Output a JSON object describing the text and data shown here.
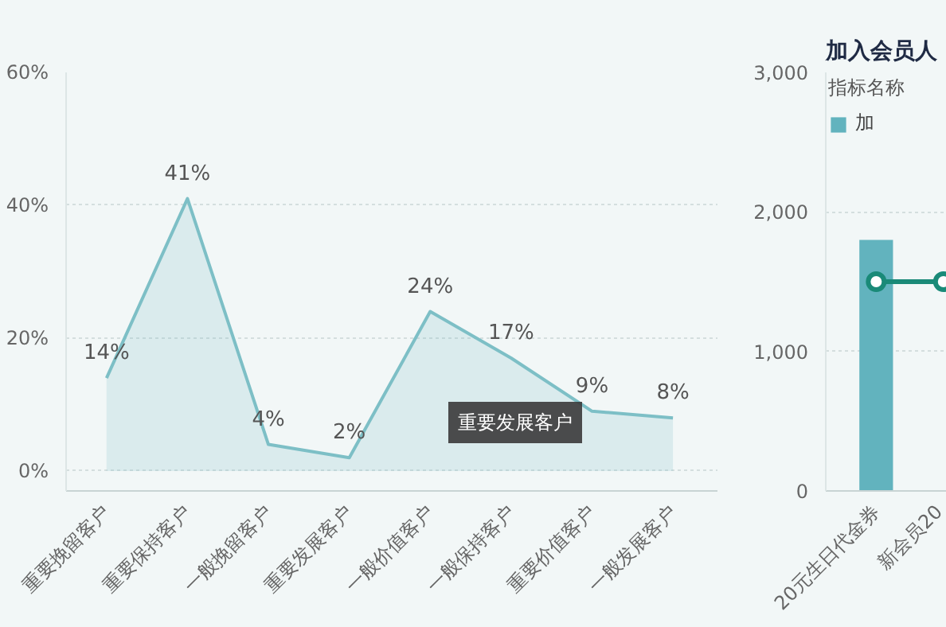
{
  "chart_data": [
    {
      "type": "area",
      "categories": [
        "重要挽留客户",
        "重要保持客户",
        "一般挽留客户",
        "重要发展客户",
        "一般价值客户",
        "一般保持客户",
        "重要价值客户",
        "一般发展客户"
      ],
      "series": [
        {
          "color": "#7dbfc6",
          "values": [
            14,
            41,
            4,
            2,
            24,
            17,
            9,
            8
          ]
        }
      ],
      "ylim": [
        -3,
        60
      ],
      "yticks": [
        {
          "value": 0,
          "label": "0%"
        },
        {
          "value": 20,
          "label": "20%"
        },
        {
          "value": 40,
          "label": "40%"
        },
        {
          "value": 60,
          "label": "60%"
        }
      ],
      "grid": "y",
      "marker": "none",
      "line_style": "solid",
      "value_labels": [
        "14%",
        "41%",
        "4%",
        "2%",
        "24%",
        "17%",
        "9%",
        "8%"
      ],
      "annotations": [
        "重要发展客户"
      ]
    },
    {
      "type": "bar",
      "title": "加入会员人",
      "legend_title": "指标名称",
      "legend": "top",
      "categories": [
        "20元生日代金券",
        "新会员20"
      ],
      "series": [
        {
          "name": "加",
          "type": "bar",
          "color": "#62b3be",
          "values": [
            1800,
            null
          ]
        },
        {
          "type": "line",
          "color": "#1a8a78",
          "values": [
            1500,
            1500
          ],
          "marker": "circle"
        }
      ],
      "ylim": [
        0,
        3000
      ],
      "yticks": [
        {
          "value": 0,
          "label": "0"
        },
        {
          "value": 1000,
          "label": "1,000"
        },
        {
          "value": 2000,
          "label": "2,000"
        },
        {
          "value": 3000,
          "label": "3,000"
        }
      ],
      "grid": "y"
    }
  ]
}
